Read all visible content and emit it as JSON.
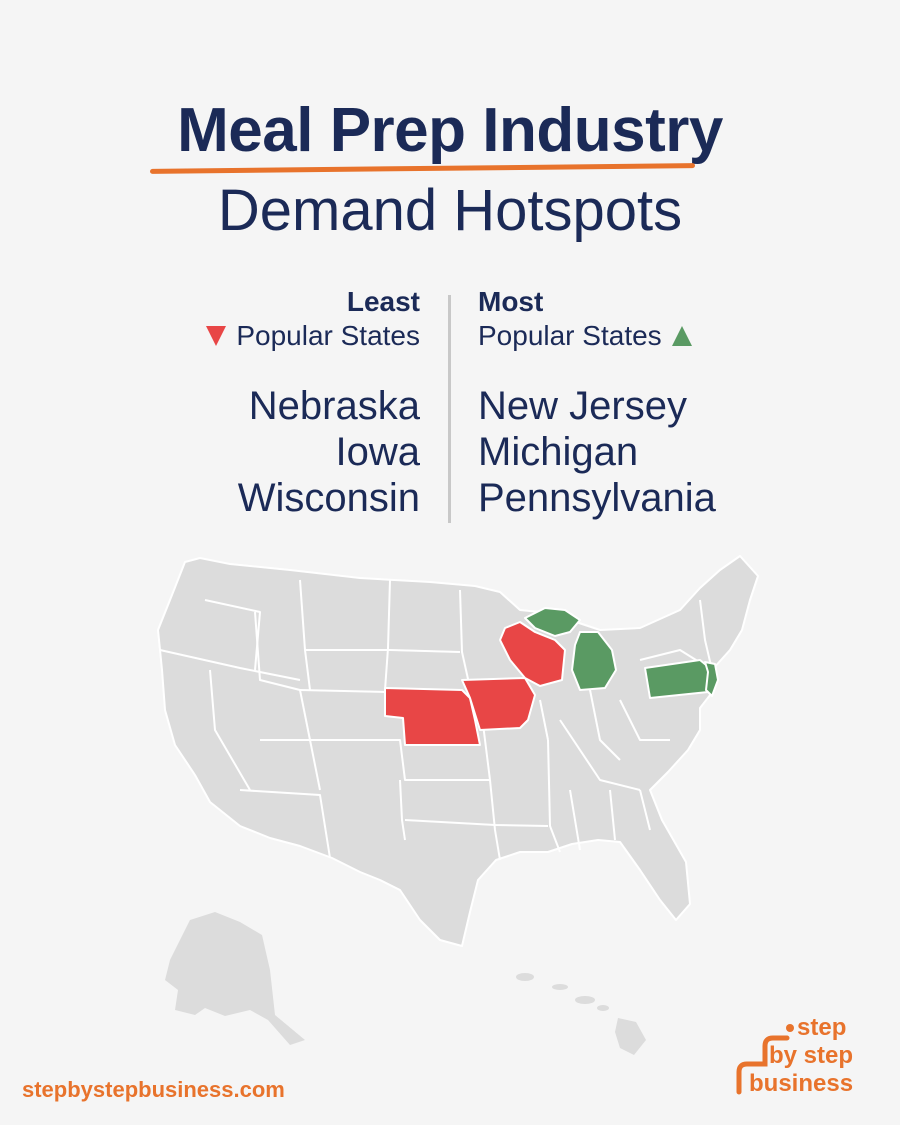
{
  "header": {
    "title": "Meal Prep Industry",
    "subtitle": "Demand Hotspots"
  },
  "least": {
    "heading": "Least",
    "subheading": "Popular States",
    "states": [
      "Nebraska",
      "Iowa",
      "Wisconsin"
    ],
    "color": "#e84646"
  },
  "most": {
    "heading": "Most",
    "subheading": "Popular States",
    "states": [
      "New Jersey",
      "Michigan",
      "Pennsylvania"
    ],
    "color": "#5a9a63"
  },
  "map": {
    "base_color": "#dcdcdc",
    "border_color": "#ffffff",
    "highlighted_least": [
      "Nebraska",
      "Iowa",
      "Wisconsin"
    ],
    "highlighted_most": [
      "Michigan",
      "Pennsylvania",
      "New Jersey"
    ]
  },
  "footer": {
    "url": "stepbystepbusiness.com",
    "logo_line1": "step",
    "logo_line2": "by step",
    "logo_line3": "business"
  },
  "colors": {
    "navy": "#1b2a57",
    "accent": "#e8732c"
  }
}
